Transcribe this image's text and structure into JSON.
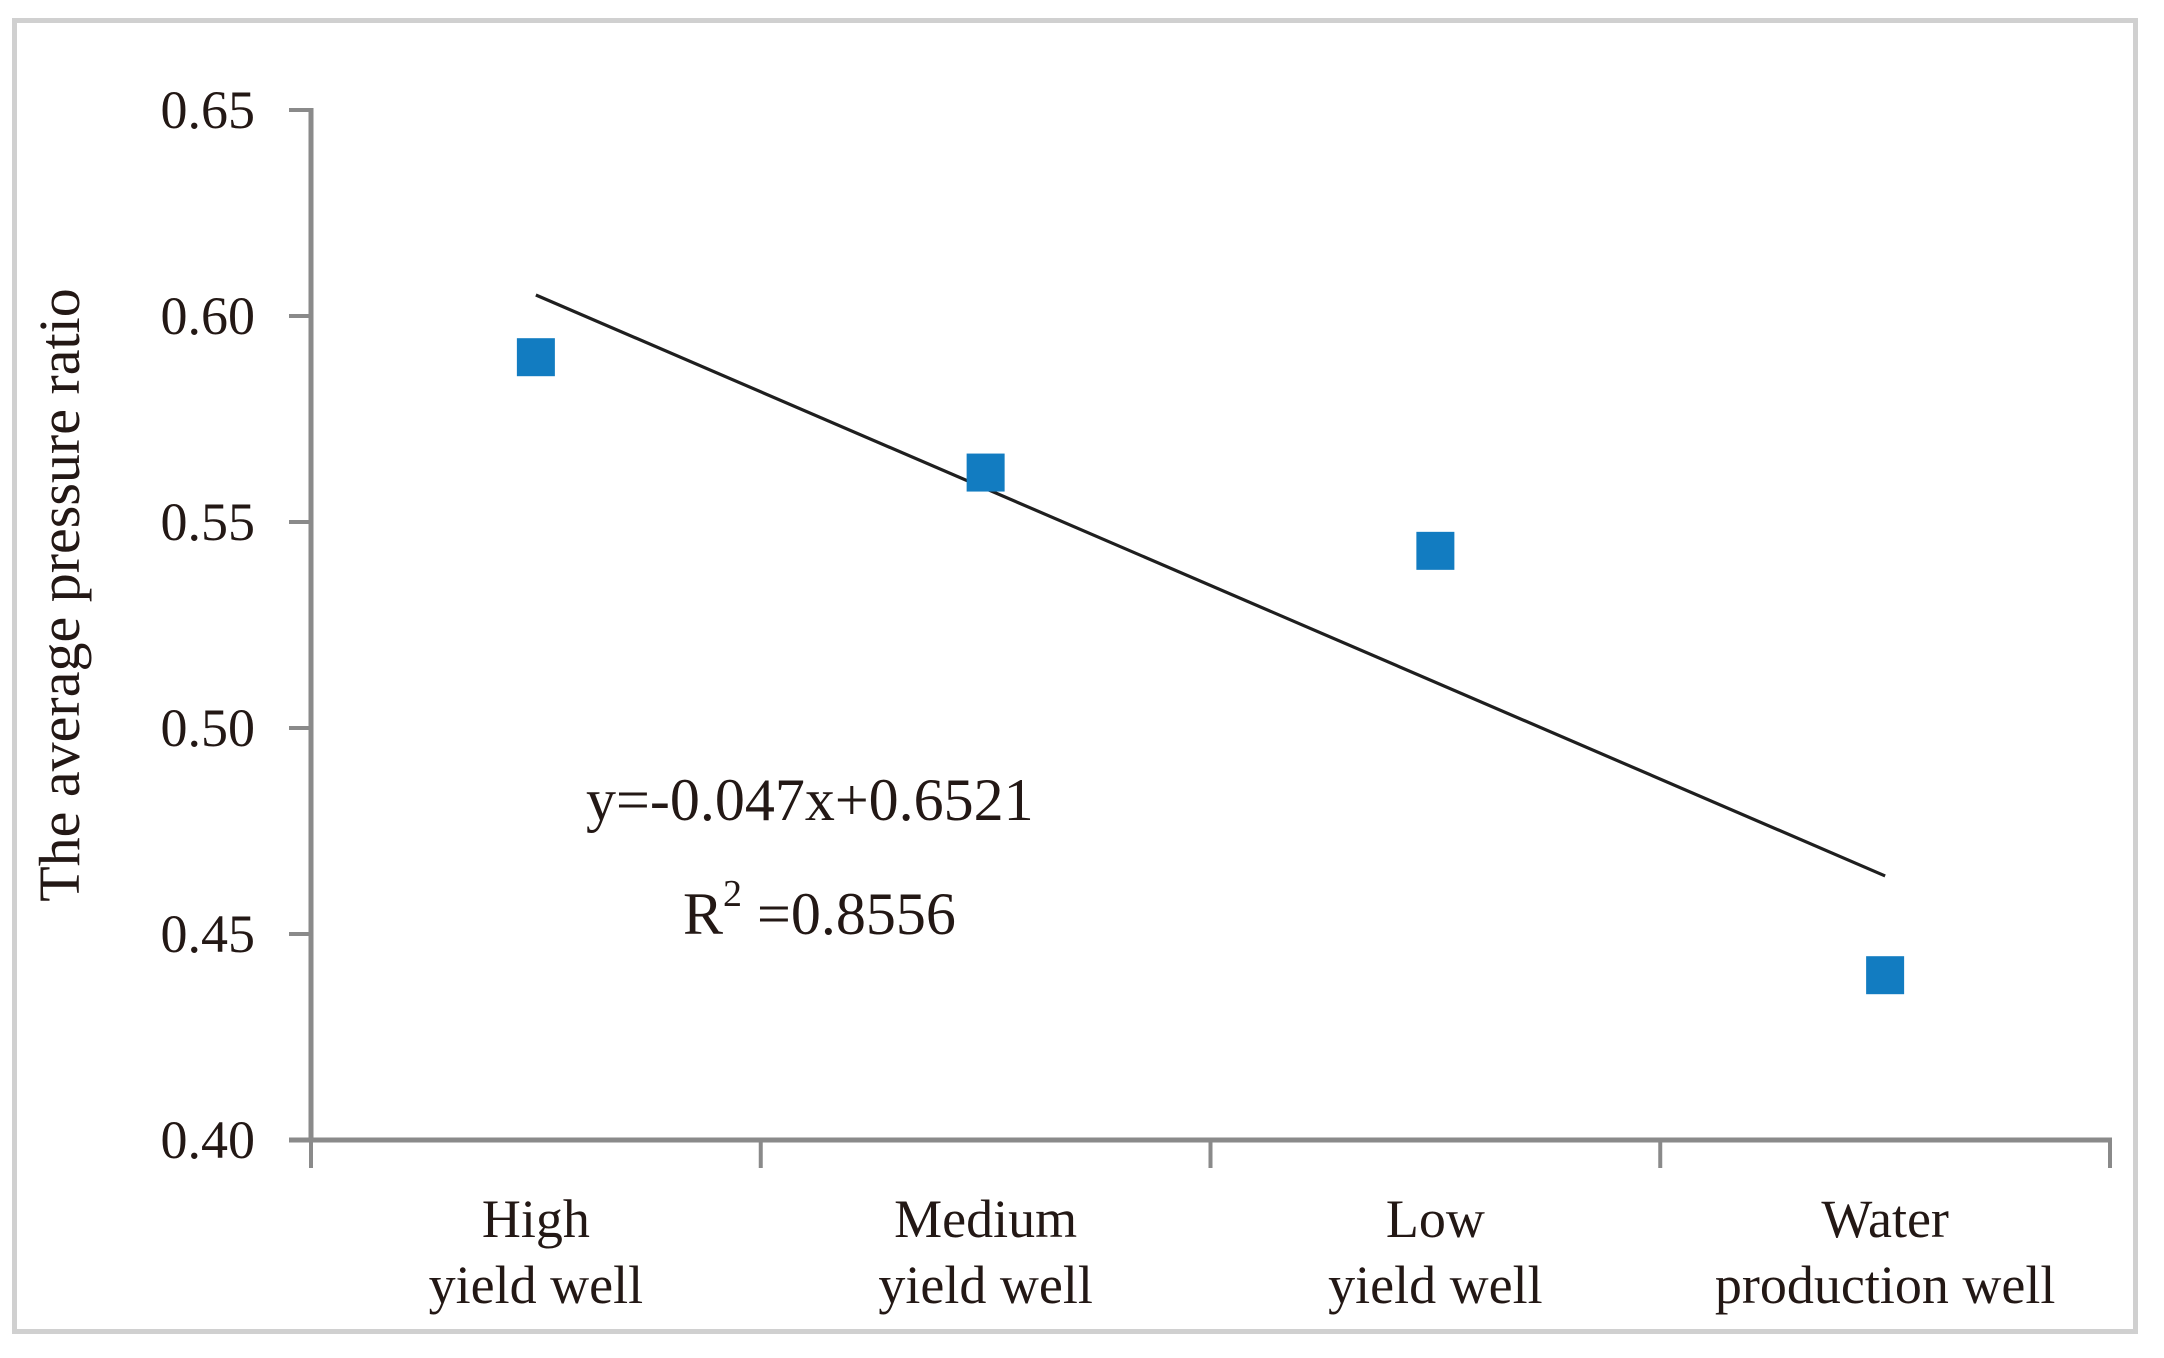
{
  "chart_data": {
    "type": "scatter",
    "title": "",
    "xlabel": "",
    "ylabel": "The average pressure ratio",
    "categories": [
      [
        "High",
        "yield well"
      ],
      [
        "Medium",
        "yield well"
      ],
      [
        "Low",
        "yield well"
      ],
      [
        "Water",
        "production well"
      ]
    ],
    "x": [
      1,
      2,
      3,
      4
    ],
    "values": [
      0.59,
      0.562,
      0.543,
      0.44
    ],
    "ylim": [
      0.4,
      0.65
    ],
    "yticks": [
      0.65,
      0.6,
      0.55,
      0.5,
      0.45,
      0.4
    ],
    "ytick_labels": [
      "0.65",
      "0.60",
      "0.55",
      "0.50",
      "0.45",
      "0.40"
    ],
    "grid": false,
    "legend": null,
    "trendline": {
      "slope": -0.047,
      "intercept": 0.6521,
      "x_start": 1,
      "x_end": 4,
      "r_squared": 0.8556
    },
    "annotations": {
      "equation": "y=-0.047x+0.6521",
      "r_squared_base": "R",
      "r_squared_sup": "2",
      "r_squared_rest": " =0.8556"
    },
    "marker": {
      "shape": "square",
      "size": 38
    },
    "colors": {
      "marker": "#127cc1",
      "trendline": "#1f1f1f",
      "axis": "#8a8a8a",
      "text": "#231815",
      "frame_border": "#d0d0d0",
      "background": "#ffffff"
    }
  }
}
